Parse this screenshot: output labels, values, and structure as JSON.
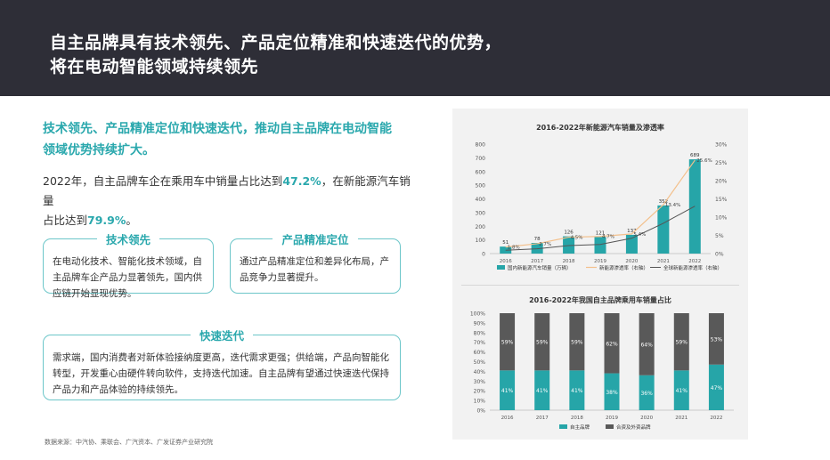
{
  "header": {
    "title_line1": "自主品牌具有技术领先、产品定位精准和快速迭代的优势，",
    "title_line2": "将在电动智能领域持续领先"
  },
  "lead": {
    "line1": "技术领先、产品精准定位和快速迭代，推动自主品牌在电动智能",
    "line2": "领域优势持续扩大。"
  },
  "body": {
    "line1_pre": "2022年，自主品牌车企在乘用车中销量占比达到",
    "line1_hl": "47.2%",
    "line1_post": "，在新能源汽车销量",
    "line2_pre": "占比达到",
    "line2_hl": "79.9%",
    "line2_post": "。"
  },
  "boxes": [
    {
      "title": "技术领先",
      "lines": [
        "在电动化技术、智能化技术领域，自",
        "主品牌车企产品力显著领先，国内供",
        "应链开始显现优势。"
      ]
    },
    {
      "title": "产品精准定位",
      "lines": [
        "通过产品精准定位和差异化布局，产",
        "品竞争力显著提升。"
      ]
    },
    {
      "title": "快速迭代",
      "lines": [
        "需求端，国内消费者对新体验接纳度更高，迭代需求更强；供给端，产品向智能化",
        "转型，开发重心由硬件转向软件，支持迭代加速。自主品牌有望通过快速迭代保持",
        "产品力和产品体验的持续领先。"
      ]
    }
  ],
  "source": "数据来源：中汽协、乘联会、广汽资本、广发证券产业研究院",
  "colors": {
    "header_bg": "#2e2e37",
    "accent": "#2aa8ad",
    "bar_teal": "#26a5a8",
    "bar_dark": "#595959",
    "line_orange": "#f3c08c",
    "line_gray": "#555555"
  },
  "chart_data": [
    {
      "type": "bar",
      "title": "2016-2022年新能源汽车销量及渗透率",
      "categories": [
        "2016",
        "2017",
        "2018",
        "2019",
        "2020",
        "2021",
        "2022"
      ],
      "series": [
        {
          "name": "国内新能源汽车销量（万辆）",
          "type": "bar",
          "axis": "left",
          "values": [
            51,
            78,
            126,
            121,
            137,
            352,
            689
          ],
          "labels": [
            "51",
            "78",
            "126",
            "121",
            "137",
            "352",
            "689"
          ]
        },
        {
          "name": "新能源渗透率（右轴）",
          "type": "line",
          "axis": "right",
          "values": [
            1.8,
            2.7,
            4.5,
            4.7,
            5.4,
            13.4,
            25.6
          ],
          "labels": [
            "1.8%",
            "2.7%",
            "4.5%",
            "4.7%",
            "5.4%",
            "13.4%",
            "25.6%"
          ]
        },
        {
          "name": "全球新能源渗透率（右轴）",
          "type": "line",
          "axis": "right",
          "values": [
            0.9,
            1.3,
            2.2,
            2.5,
            4.2,
            8.3,
            13.0
          ],
          "labels": []
        }
      ],
      "ylim": [
        0,
        800
      ],
      "yticks": [
        "0",
        "100",
        "200",
        "300",
        "400",
        "500",
        "600",
        "700",
        "800"
      ],
      "y2lim": [
        0,
        30
      ],
      "y2ticks": [
        "0%",
        "5%",
        "10%",
        "15%",
        "20%",
        "25%",
        "30%"
      ]
    },
    {
      "type": "bar",
      "stacked": true,
      "title": "2016-2022年我国自主品牌乘用车销量占比",
      "categories": [
        "2016",
        "2017",
        "2018",
        "2019",
        "2020",
        "2021",
        "2022"
      ],
      "series": [
        {
          "name": "自主品牌",
          "values": [
            41,
            41,
            41,
            38,
            36,
            41,
            47
          ],
          "labels": [
            "41%",
            "41%",
            "41%",
            "38%",
            "36%",
            "41%",
            "47%"
          ]
        },
        {
          "name": "合资及外资品牌",
          "values": [
            59,
            59,
            59,
            62,
            64,
            59,
            53
          ],
          "labels": [
            "59%",
            "59%",
            "59%",
            "62%",
            "64%",
            "59%",
            "53%"
          ]
        }
      ],
      "ylim": [
        0,
        100
      ],
      "yticks": [
        "0%",
        "10%",
        "20%",
        "30%",
        "40%",
        "50%",
        "60%",
        "70%",
        "80%",
        "90%",
        "100%"
      ]
    }
  ]
}
